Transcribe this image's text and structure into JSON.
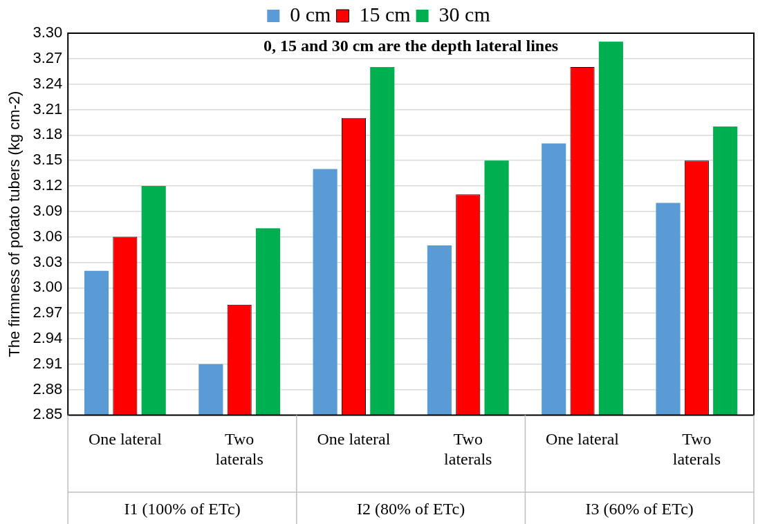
{
  "chart_data": {
    "type": "bar",
    "ylabel": "The firmness of potato tubers (kg cm-2)",
    "categories": [
      "One lateral",
      "Two laterals",
      "One lateral",
      "Two laterals",
      "One lateral",
      "Two laterals"
    ],
    "series": [
      {
        "name": "0 cm",
        "color": "#5b9bd5",
        "values": [
          3.02,
          2.91,
          3.14,
          3.05,
          3.17,
          3.1
        ]
      },
      {
        "name": "15 cm",
        "color": "#ff0000",
        "values": [
          3.06,
          2.98,
          3.2,
          3.11,
          3.26,
          3.15
        ]
      },
      {
        "name": "30 cm",
        "color": "#00b050",
        "values": [
          3.12,
          3.07,
          3.26,
          3.15,
          3.29,
          3.19
        ]
      }
    ],
    "ylim": [
      2.85,
      3.3
    ],
    "yticks": [
      2.85,
      2.88,
      2.91,
      2.94,
      2.97,
      {
        "value": 3,
        "label": "3.00"
      },
      3.03,
      3.06,
      3.09,
      3.12,
      3.15,
      3.18,
      3.21,
      3.24,
      3.27,
      {
        "value": 3.3,
        "label": "3.30"
      }
    ],
    "grid": "y",
    "legend": "top",
    "annotations": [
      "0, 15 and 30 cm are the depth lateral lines",
      "I1 (100% of ETc)",
      "I2 (80% of ETc)",
      "I3 (60% of ETc)"
    ]
  }
}
